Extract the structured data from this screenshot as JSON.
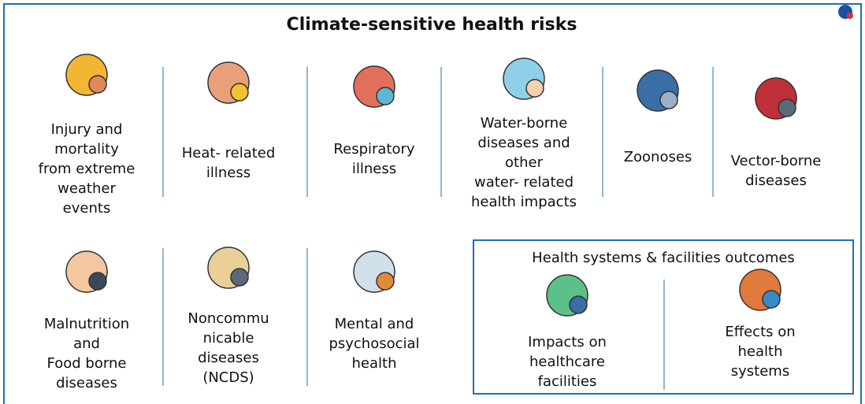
{
  "title": "Climate-sensitive health risks",
  "row1": [
    {
      "lines": [
        "Injury and",
        "mortality",
        "from extreme",
        "weather",
        "events"
      ]
    },
    {
      "lines": [
        "Heat- related",
        "illness"
      ]
    },
    {
      "lines": [
        "Respiratory",
        "illness"
      ]
    },
    {
      "lines": [
        "Water-borne",
        "diseases and",
        "other",
        "water- related",
        "health impacts"
      ]
    },
    {
      "lines": [
        "Zoonoses"
      ]
    },
    {
      "lines": [
        "Vector-borne",
        "diseases"
      ]
    }
  ],
  "row2": [
    {
      "lines": [
        "Malnutrition",
        "and",
        "Food borne",
        "diseases"
      ]
    },
    {
      "lines": [
        "Noncommu",
        "nicable",
        "diseases",
        "(NCDS)"
      ]
    },
    {
      "lines": [
        "Mental and",
        "psychosocial",
        "health"
      ]
    }
  ],
  "health_systems": {
    "title": "Health systems & facilities outcomes",
    "items": [
      {
        "lines": [
          "Impacts on",
          "healthcare",
          "facilities"
        ]
      },
      {
        "lines": [
          "Effects on",
          "health",
          "systems"
        ]
      }
    ]
  }
}
